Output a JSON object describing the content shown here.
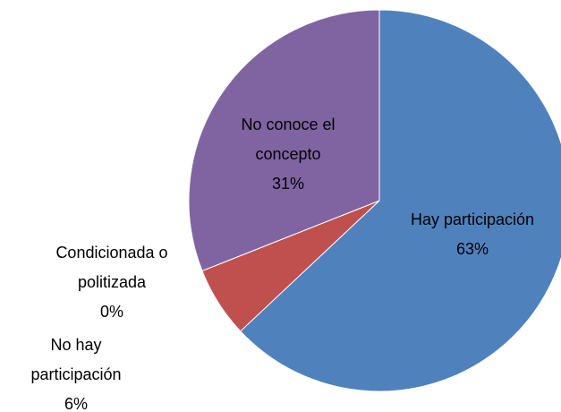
{
  "chart_data": {
    "type": "pie",
    "categories": [
      "Hay participación",
      "No hay participación",
      "Condicionada o politizada",
      "No conoce el concepto"
    ],
    "values": [
      63,
      6,
      0,
      31
    ],
    "value_labels": [
      "63%",
      "6%",
      "0%",
      "31%"
    ],
    "colors": [
      "#4f81bd",
      "#c0504d",
      "#9bbb59",
      "#8064a2"
    ]
  }
}
